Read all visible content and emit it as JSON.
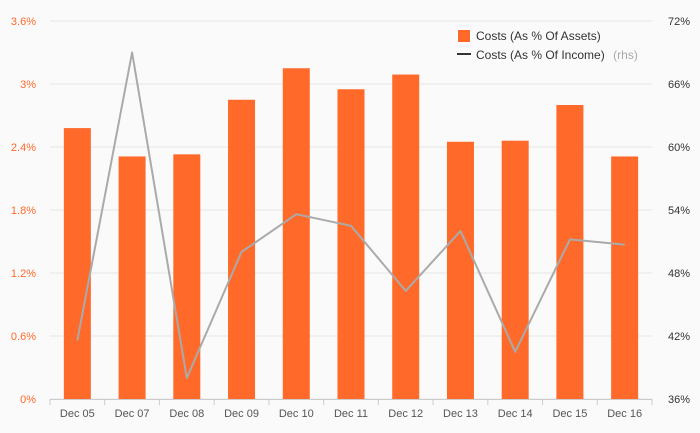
{
  "chart_data": {
    "type": "bar",
    "categories": [
      "Dec 05",
      "Dec 07",
      "Dec 08",
      "Dec 09",
      "Dec 10",
      "Dec 11",
      "Dec 12",
      "Dec 13",
      "Dec 14",
      "Dec 15",
      "Dec 16"
    ],
    "series": [
      {
        "name": "Costs (As % Of Assets)",
        "type": "bar",
        "axis": "left",
        "color": "#ff6a2b",
        "values": [
          2.58,
          2.31,
          2.33,
          2.85,
          3.15,
          2.95,
          3.09,
          2.45,
          2.46,
          2.8,
          2.31
        ]
      },
      {
        "name": "Costs (As % Of Income)",
        "name_suffix": "(rhs)",
        "type": "line",
        "axis": "right",
        "color": "#aaaaaa",
        "values": [
          41.6,
          69.0,
          38.0,
          50.0,
          53.6,
          52.5,
          46.3,
          52.0,
          40.5,
          51.2,
          50.7
        ]
      }
    ],
    "y_left": {
      "min": 0,
      "max": 3.6,
      "ticks": [
        "0%",
        "0.6%",
        "1.2%",
        "1.8%",
        "2.4%",
        "3%",
        "3.6%"
      ],
      "tick_values": [
        0,
        0.6,
        1.2,
        1.8,
        2.4,
        3.0,
        3.6
      ]
    },
    "y_right": {
      "min": 36,
      "max": 72,
      "ticks": [
        "36%",
        "42%",
        "48%",
        "54%",
        "60%",
        "66%",
        "72%"
      ],
      "tick_values": [
        36,
        42,
        48,
        54,
        60,
        66,
        72
      ]
    },
    "grid": true,
    "legend_position": "top-right",
    "title": "",
    "xlabel": "",
    "ylabel": ""
  }
}
